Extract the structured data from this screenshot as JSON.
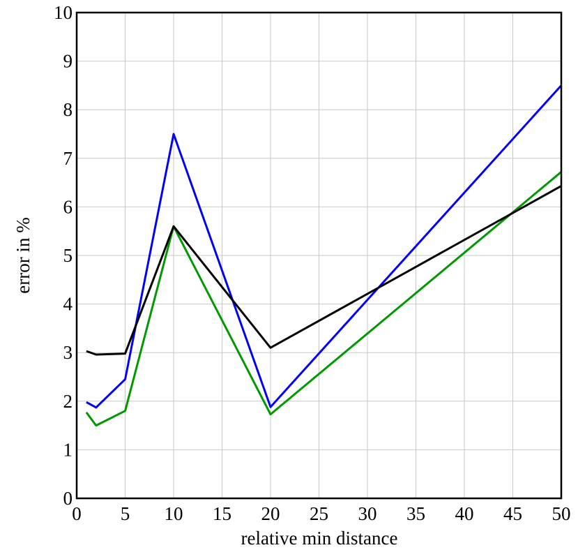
{
  "chart_data": {
    "type": "line",
    "xlabel": "relative min distance",
    "ylabel": "error in %",
    "x": [
      1,
      2,
      5,
      10,
      20,
      50
    ],
    "series": [
      {
        "color": "#0000ff",
        "values": [
          1.98,
          1.87,
          2.45,
          7.5,
          1.88,
          8.5
        ]
      },
      {
        "color": "#009900",
        "values": [
          1.77,
          1.5,
          1.8,
          5.6,
          1.73,
          6.72
        ]
      },
      {
        "color": "#000000",
        "values": [
          3.03,
          2.96,
          2.98,
          5.6,
          3.1,
          6.43
        ]
      }
    ],
    "xlim": [
      0,
      50
    ],
    "xticks": [
      0,
      5,
      10,
      15,
      20,
      25,
      30,
      35,
      40,
      45,
      50
    ],
    "ylim": [
      0,
      10
    ],
    "yticks": [
      0,
      1,
      2,
      3,
      4,
      5,
      6,
      7,
      8,
      9,
      10
    ],
    "grid": true
  }
}
